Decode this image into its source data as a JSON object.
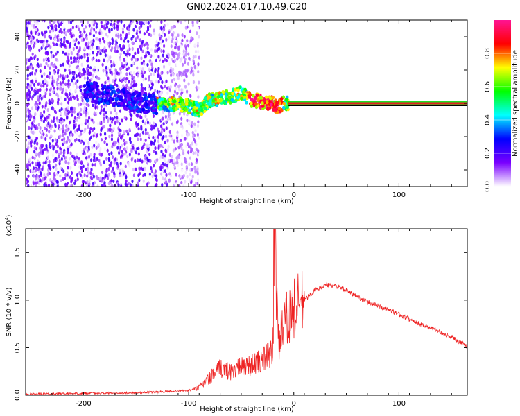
{
  "title": "GN02.2024.017.10.49.C20",
  "chart_data": [
    {
      "type": "heatmap",
      "xlabel": "Height of straight line (km)",
      "ylabel": "Frequency (Hz)",
      "xlim": [
        -255,
        165
      ],
      "ylim": [
        -50,
        50
      ],
      "xticks": [
        -200,
        -100,
        0,
        100
      ],
      "yticks": [
        -40,
        -20,
        0,
        20,
        40
      ],
      "colorbar": {
        "label": "Normalized spectral amplitude",
        "ticks": [
          "0.0",
          "0.2",
          "0.4",
          "0.6",
          "0.8"
        ],
        "range": [
          0,
          1
        ],
        "colors": [
          "#ffffff",
          "#7a00ff",
          "#0000ff",
          "#00ffff",
          "#00ff00",
          "#ffff00",
          "#ff0000",
          "#ff1493"
        ]
      },
      "line": {
        "y": 0,
        "x_from": -5,
        "x_to": 165,
        "color": "#e02020"
      },
      "ridge": [
        {
          "x": -190,
          "y": 7
        },
        {
          "x": -165,
          "y": 3
        },
        {
          "x": -150,
          "y": 1
        },
        {
          "x": -125,
          "y": -1
        },
        {
          "x": -110,
          "y": 0
        },
        {
          "x": -100,
          "y": -2
        },
        {
          "x": -90,
          "y": -4
        },
        {
          "x": -80,
          "y": 2
        },
        {
          "x": -70,
          "y": 3
        },
        {
          "x": -60,
          "y": 4
        },
        {
          "x": -50,
          "y": 6
        },
        {
          "x": -40,
          "y": 2
        },
        {
          "x": -30,
          "y": 1
        },
        {
          "x": -20,
          "y": 0
        },
        {
          "x": -15,
          "y": -2
        },
        {
          "x": -10,
          "y": 0
        }
      ]
    },
    {
      "type": "line",
      "xlabel": "Height of straight line (km)",
      "ylabel": "SNR (10 * v/v)",
      "y_exponent": "(x10",
      "y_exponent_power": "4",
      "y_exponent_close": ")",
      "xlim": [
        -255,
        165
      ],
      "ylim": [
        0,
        1.75
      ],
      "xticks": [
        -200,
        -100,
        0,
        100
      ],
      "yticks": [
        "0.0",
        "0.5",
        "1.0",
        "1.5"
      ],
      "color": "#ee2222",
      "series": [
        {
          "x": [
            -255,
            -200,
            -150,
            -120,
            -100,
            -90,
            -80,
            -70,
            -60,
            -50,
            -40,
            -30,
            -20,
            -18,
            -15,
            -10,
            -5,
            0,
            10,
            20,
            30,
            40,
            50,
            60,
            70,
            80,
            90,
            100,
            110,
            120,
            130,
            140,
            150,
            160,
            165
          ],
          "y": [
            0.01,
            0.02,
            0.025,
            0.04,
            0.05,
            0.08,
            0.18,
            0.28,
            0.25,
            0.3,
            0.32,
            0.36,
            0.45,
            1.72,
            0.55,
            0.7,
            0.85,
            0.9,
            1.0,
            1.1,
            1.16,
            1.15,
            1.1,
            1.04,
            0.98,
            0.94,
            0.9,
            0.85,
            0.8,
            0.75,
            0.71,
            0.66,
            0.61,
            0.55,
            0.51
          ]
        }
      ]
    }
  ]
}
